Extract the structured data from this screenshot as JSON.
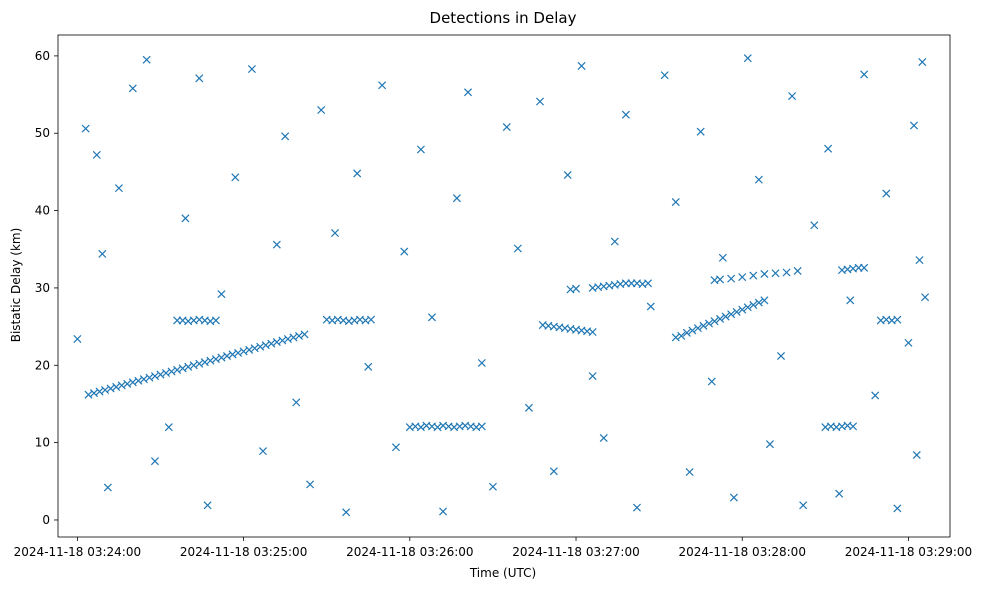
{
  "chart_data": {
    "type": "scatter",
    "title": "Detections in Delay",
    "xlabel": "Time (UTC)",
    "ylabel": "Bistatic Delay (km)",
    "marker": "x",
    "color": "#1f77b4",
    "grid": false,
    "legend": "none",
    "x_is_time": true,
    "xlim": [
      "2024-11-18 03:23:53",
      "2024-11-18 03:29:15"
    ],
    "ylim": [
      -2.2,
      62.7
    ],
    "x_ticks": [
      "2024-11-18 03:24:00",
      "2024-11-18 03:25:00",
      "2024-11-18 03:26:00",
      "2024-11-18 03:27:00",
      "2024-11-18 03:28:00",
      "2024-11-18 03:29:00"
    ],
    "y_ticks": [
      "0",
      "10",
      "20",
      "30",
      "40",
      "50",
      "60"
    ],
    "y_tick_values": [
      0,
      10,
      20,
      30,
      40,
      50,
      60
    ],
    "series": [
      {
        "description": "approximate detections (track segments plus scattered clutter)",
        "points": [
          [
            "2024-11-18 03:24:04",
            16.2
          ],
          [
            "2024-11-18 03:24:06",
            16.4
          ],
          [
            "2024-11-18 03:24:08",
            16.6
          ],
          [
            "2024-11-18 03:24:10",
            16.8
          ],
          [
            "2024-11-18 03:24:12",
            17.0
          ],
          [
            "2024-11-18 03:24:14",
            17.2
          ],
          [
            "2024-11-18 03:24:16",
            17.4
          ],
          [
            "2024-11-18 03:24:18",
            17.6
          ],
          [
            "2024-11-18 03:24:20",
            17.8
          ],
          [
            "2024-11-18 03:24:22",
            18.0
          ],
          [
            "2024-11-18 03:24:24",
            18.2
          ],
          [
            "2024-11-18 03:24:26",
            18.4
          ],
          [
            "2024-11-18 03:24:28",
            18.6
          ],
          [
            "2024-11-18 03:24:30",
            18.8
          ],
          [
            "2024-11-18 03:24:32",
            19.0
          ],
          [
            "2024-11-18 03:24:34",
            19.2
          ],
          [
            "2024-11-18 03:24:36",
            19.4
          ],
          [
            "2024-11-18 03:24:38",
            19.6
          ],
          [
            "2024-11-18 03:24:40",
            19.8
          ],
          [
            "2024-11-18 03:24:42",
            20.0
          ],
          [
            "2024-11-18 03:24:44",
            20.2
          ],
          [
            "2024-11-18 03:24:46",
            20.4
          ],
          [
            "2024-11-18 03:24:48",
            20.6
          ],
          [
            "2024-11-18 03:24:50",
            20.8
          ],
          [
            "2024-11-18 03:24:52",
            21.0
          ],
          [
            "2024-11-18 03:24:54",
            21.2
          ],
          [
            "2024-11-18 03:24:56",
            21.4
          ],
          [
            "2024-11-18 03:24:58",
            21.6
          ],
          [
            "2024-11-18 03:25:00",
            21.8
          ],
          [
            "2024-11-18 03:25:02",
            22.0
          ],
          [
            "2024-11-18 03:25:04",
            22.2
          ],
          [
            "2024-11-18 03:25:06",
            22.4
          ],
          [
            "2024-11-18 03:25:08",
            22.6
          ],
          [
            "2024-11-18 03:25:10",
            22.8
          ],
          [
            "2024-11-18 03:25:12",
            23.0
          ],
          [
            "2024-11-18 03:25:14",
            23.2
          ],
          [
            "2024-11-18 03:25:16",
            23.4
          ],
          [
            "2024-11-18 03:25:18",
            23.6
          ],
          [
            "2024-11-18 03:25:20",
            23.8
          ],
          [
            "2024-11-18 03:25:22",
            24.0
          ],
          [
            "2024-11-18 03:24:36",
            25.8
          ],
          [
            "2024-11-18 03:24:38",
            25.8
          ],
          [
            "2024-11-18 03:24:40",
            25.7
          ],
          [
            "2024-11-18 03:24:42",
            25.8
          ],
          [
            "2024-11-18 03:24:44",
            25.9
          ],
          [
            "2024-11-18 03:24:46",
            25.8
          ],
          [
            "2024-11-18 03:24:48",
            25.7
          ],
          [
            "2024-11-18 03:24:50",
            25.8
          ],
          [
            "2024-11-18 03:25:30",
            25.9
          ],
          [
            "2024-11-18 03:25:32",
            25.8
          ],
          [
            "2024-11-18 03:25:34",
            25.9
          ],
          [
            "2024-11-18 03:25:36",
            25.8
          ],
          [
            "2024-11-18 03:25:38",
            25.7
          ],
          [
            "2024-11-18 03:25:40",
            25.8
          ],
          [
            "2024-11-18 03:25:42",
            25.9
          ],
          [
            "2024-11-18 03:25:44",
            25.8
          ],
          [
            "2024-11-18 03:25:46",
            25.9
          ],
          [
            "2024-11-18 03:26:00",
            12.0
          ],
          [
            "2024-11-18 03:26:02",
            12.1
          ],
          [
            "2024-11-18 03:26:04",
            12.0
          ],
          [
            "2024-11-18 03:26:06",
            12.2
          ],
          [
            "2024-11-18 03:26:08",
            12.1
          ],
          [
            "2024-11-18 03:26:10",
            12.0
          ],
          [
            "2024-11-18 03:26:12",
            12.2
          ],
          [
            "2024-11-18 03:26:14",
            12.1
          ],
          [
            "2024-11-18 03:26:16",
            12.0
          ],
          [
            "2024-11-18 03:26:18",
            12.1
          ],
          [
            "2024-11-18 03:26:20",
            12.2
          ],
          [
            "2024-11-18 03:26:22",
            12.1
          ],
          [
            "2024-11-18 03:26:24",
            12.0
          ],
          [
            "2024-11-18 03:26:26",
            12.1
          ],
          [
            "2024-11-18 03:26:48",
            25.2
          ],
          [
            "2024-11-18 03:26:50",
            25.1
          ],
          [
            "2024-11-18 03:26:52",
            25.0
          ],
          [
            "2024-11-18 03:26:54",
            24.9
          ],
          [
            "2024-11-18 03:26:56",
            24.8
          ],
          [
            "2024-11-18 03:26:58",
            24.7
          ],
          [
            "2024-11-18 03:27:00",
            24.6
          ],
          [
            "2024-11-18 03:27:02",
            24.5
          ],
          [
            "2024-11-18 03:27:04",
            24.4
          ],
          [
            "2024-11-18 03:27:06",
            24.3
          ],
          [
            "2024-11-18 03:26:58",
            29.8
          ],
          [
            "2024-11-18 03:27:00",
            29.9
          ],
          [
            "2024-11-18 03:27:06",
            30.0
          ],
          [
            "2024-11-18 03:27:08",
            30.1
          ],
          [
            "2024-11-18 03:27:10",
            30.2
          ],
          [
            "2024-11-18 03:27:12",
            30.3
          ],
          [
            "2024-11-18 03:27:14",
            30.4
          ],
          [
            "2024-11-18 03:27:16",
            30.5
          ],
          [
            "2024-11-18 03:27:18",
            30.6
          ],
          [
            "2024-11-18 03:27:20",
            30.6
          ],
          [
            "2024-11-18 03:27:22",
            30.6
          ],
          [
            "2024-11-18 03:27:24",
            30.5
          ],
          [
            "2024-11-18 03:27:26",
            30.6
          ],
          [
            "2024-11-18 03:27:36",
            23.6
          ],
          [
            "2024-11-18 03:27:38",
            23.8
          ],
          [
            "2024-11-18 03:27:40",
            24.2
          ],
          [
            "2024-11-18 03:27:42",
            24.5
          ],
          [
            "2024-11-18 03:27:44",
            24.8
          ],
          [
            "2024-11-18 03:27:46",
            25.1
          ],
          [
            "2024-11-18 03:27:48",
            25.4
          ],
          [
            "2024-11-18 03:27:50",
            25.7
          ],
          [
            "2024-11-18 03:27:52",
            26.0
          ],
          [
            "2024-11-18 03:27:54",
            26.3
          ],
          [
            "2024-11-18 03:27:56",
            26.6
          ],
          [
            "2024-11-18 03:27:58",
            26.9
          ],
          [
            "2024-11-18 03:28:00",
            27.2
          ],
          [
            "2024-11-18 03:28:02",
            27.5
          ],
          [
            "2024-11-18 03:28:04",
            27.8
          ],
          [
            "2024-11-18 03:28:06",
            28.1
          ],
          [
            "2024-11-18 03:28:08",
            28.4
          ],
          [
            "2024-11-18 03:27:50",
            31.0
          ],
          [
            "2024-11-18 03:27:52",
            31.1
          ],
          [
            "2024-11-18 03:27:56",
            31.2
          ],
          [
            "2024-11-18 03:28:00",
            31.4
          ],
          [
            "2024-11-18 03:28:04",
            31.6
          ],
          [
            "2024-11-18 03:28:08",
            31.8
          ],
          [
            "2024-11-18 03:28:12",
            31.9
          ],
          [
            "2024-11-18 03:28:16",
            32.0
          ],
          [
            "2024-11-18 03:28:20",
            32.2
          ],
          [
            "2024-11-18 03:28:30",
            12.0
          ],
          [
            "2024-11-18 03:28:32",
            12.1
          ],
          [
            "2024-11-18 03:28:34",
            12.0
          ],
          [
            "2024-11-18 03:28:36",
            12.1
          ],
          [
            "2024-11-18 03:28:38",
            12.2
          ],
          [
            "2024-11-18 03:28:40",
            12.1
          ],
          [
            "2024-11-18 03:28:36",
            32.3
          ],
          [
            "2024-11-18 03:28:38",
            32.4
          ],
          [
            "2024-11-18 03:28:40",
            32.5
          ],
          [
            "2024-11-18 03:28:42",
            32.6
          ],
          [
            "2024-11-18 03:28:44",
            32.6
          ],
          [
            "2024-11-18 03:28:50",
            25.8
          ],
          [
            "2024-11-18 03:28:52",
            25.9
          ],
          [
            "2024-11-18 03:28:54",
            25.8
          ],
          [
            "2024-11-18 03:28:56",
            25.9
          ],
          [
            "2024-11-18 03:24:00",
            23.4
          ],
          [
            "2024-11-18 03:24:03",
            50.6
          ],
          [
            "2024-11-18 03:24:07",
            47.2
          ],
          [
            "2024-11-18 03:24:09",
            34.4
          ],
          [
            "2024-11-18 03:24:11",
            4.2
          ],
          [
            "2024-11-18 03:24:15",
            42.9
          ],
          [
            "2024-11-18 03:24:20",
            55.8
          ],
          [
            "2024-11-18 03:24:25",
            59.5
          ],
          [
            "2024-11-18 03:24:28",
            7.6
          ],
          [
            "2024-11-18 03:24:33",
            12.0
          ],
          [
            "2024-11-18 03:24:39",
            39.0
          ],
          [
            "2024-11-18 03:24:44",
            57.1
          ],
          [
            "2024-11-18 03:24:47",
            1.9
          ],
          [
            "2024-11-18 03:24:52",
            29.2
          ],
          [
            "2024-11-18 03:24:57",
            44.3
          ],
          [
            "2024-11-18 03:25:03",
            58.3
          ],
          [
            "2024-11-18 03:25:07",
            8.9
          ],
          [
            "2024-11-18 03:25:12",
            35.6
          ],
          [
            "2024-11-18 03:25:15",
            49.6
          ],
          [
            "2024-11-18 03:25:19",
            15.2
          ],
          [
            "2024-11-18 03:25:24",
            4.6
          ],
          [
            "2024-11-18 03:25:28",
            53.0
          ],
          [
            "2024-11-18 03:25:33",
            37.1
          ],
          [
            "2024-11-18 03:25:37",
            1.0
          ],
          [
            "2024-11-18 03:25:41",
            44.8
          ],
          [
            "2024-11-18 03:25:45",
            19.8
          ],
          [
            "2024-11-18 03:25:50",
            56.2
          ],
          [
            "2024-11-18 03:25:55",
            9.4
          ],
          [
            "2024-11-18 03:25:58",
            34.7
          ],
          [
            "2024-11-18 03:26:04",
            47.9
          ],
          [
            "2024-11-18 03:26:08",
            26.2
          ],
          [
            "2024-11-18 03:26:12",
            1.1
          ],
          [
            "2024-11-18 03:26:17",
            41.6
          ],
          [
            "2024-11-18 03:26:21",
            55.3
          ],
          [
            "2024-11-18 03:26:26",
            20.3
          ],
          [
            "2024-11-18 03:26:30",
            4.3
          ],
          [
            "2024-11-18 03:26:35",
            50.8
          ],
          [
            "2024-11-18 03:26:39",
            35.1
          ],
          [
            "2024-11-18 03:26:43",
            14.5
          ],
          [
            "2024-11-18 03:26:47",
            54.1
          ],
          [
            "2024-11-18 03:26:52",
            6.3
          ],
          [
            "2024-11-18 03:26:57",
            44.6
          ],
          [
            "2024-11-18 03:27:02",
            58.7
          ],
          [
            "2024-11-18 03:27:06",
            18.6
          ],
          [
            "2024-11-18 03:27:10",
            10.6
          ],
          [
            "2024-11-18 03:27:14",
            36.0
          ],
          [
            "2024-11-18 03:27:18",
            52.4
          ],
          [
            "2024-11-18 03:27:22",
            1.6
          ],
          [
            "2024-11-18 03:27:27",
            27.6
          ],
          [
            "2024-11-18 03:27:32",
            57.5
          ],
          [
            "2024-11-18 03:27:36",
            41.1
          ],
          [
            "2024-11-18 03:27:41",
            6.2
          ],
          [
            "2024-11-18 03:27:45",
            50.2
          ],
          [
            "2024-11-18 03:27:49",
            17.9
          ],
          [
            "2024-11-18 03:27:53",
            33.9
          ],
          [
            "2024-11-18 03:27:57",
            2.9
          ],
          [
            "2024-11-18 03:28:02",
            59.7
          ],
          [
            "2024-11-18 03:28:06",
            44.0
          ],
          [
            "2024-11-18 03:28:10",
            9.8
          ],
          [
            "2024-11-18 03:28:14",
            21.2
          ],
          [
            "2024-11-18 03:28:18",
            54.8
          ],
          [
            "2024-11-18 03:28:22",
            1.9
          ],
          [
            "2024-11-18 03:28:26",
            38.1
          ],
          [
            "2024-11-18 03:28:31",
            48.0
          ],
          [
            "2024-11-18 03:28:35",
            3.4
          ],
          [
            "2024-11-18 03:28:39",
            28.4
          ],
          [
            "2024-11-18 03:28:44",
            57.6
          ],
          [
            "2024-11-18 03:28:48",
            16.1
          ],
          [
            "2024-11-18 03:28:52",
            42.2
          ],
          [
            "2024-11-18 03:28:56",
            1.5
          ],
          [
            "2024-11-18 03:29:00",
            22.9
          ],
          [
            "2024-11-18 03:29:02",
            51.0
          ],
          [
            "2024-11-18 03:29:04",
            33.6
          ],
          [
            "2024-11-18 03:29:05",
            59.2
          ],
          [
            "2024-11-18 03:29:06",
            28.8
          ],
          [
            "2024-11-18 03:29:03",
            8.4
          ]
        ]
      }
    ]
  }
}
